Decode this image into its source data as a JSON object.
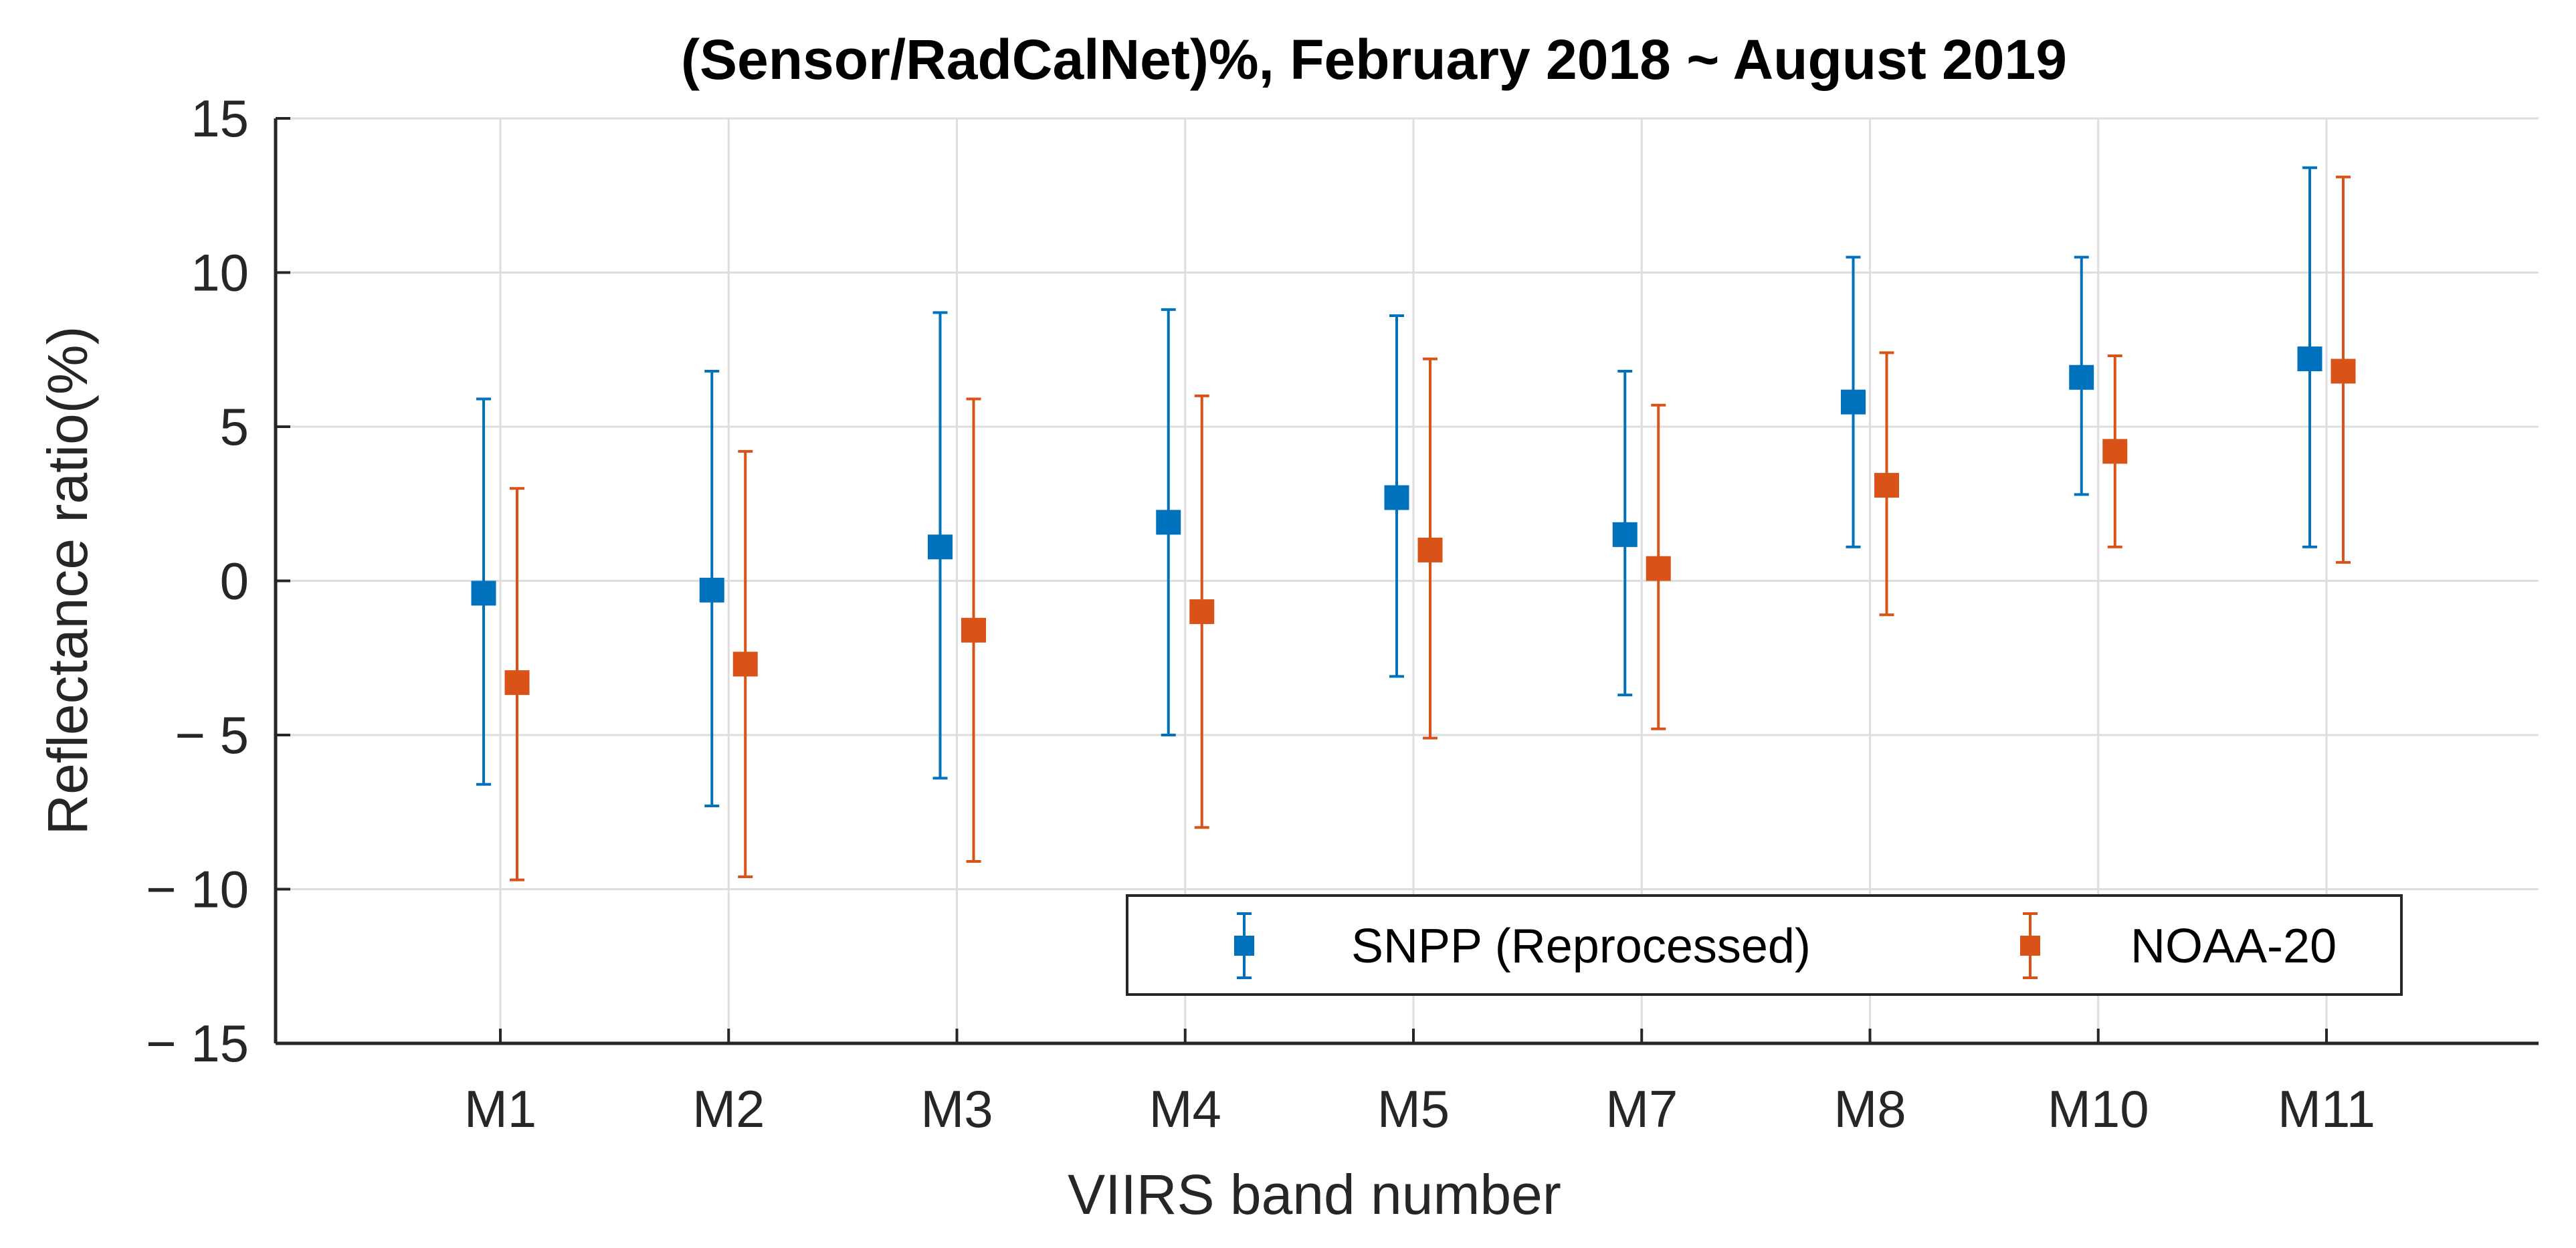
{
  "chart_data": {
    "type": "errorbar",
    "title": "(Sensor/RadCalNet)%, February 2018 ~ August 2019",
    "xlabel": "VIIRS band number",
    "ylabel": "Reflectance ratio(%)",
    "ylim": [
      -15,
      15
    ],
    "yticks": [
      15,
      10,
      5,
      0,
      -5,
      -10,
      -15
    ],
    "ytick_labels": [
      "15",
      "10",
      "5",
      "0",
      "− 5",
      "− 10",
      "− 15"
    ],
    "grid": true,
    "legend_position": "bottom-right",
    "categories": [
      "M1",
      "M2",
      "M3",
      "M4",
      "M5",
      "M7",
      "M8",
      "M10",
      "M11"
    ],
    "series": [
      {
        "name": "SNPP (Reprocessed)",
        "color": "#0072BD",
        "values": [
          -0.4,
          -0.3,
          1.1,
          1.9,
          2.7,
          1.5,
          5.8,
          6.6,
          7.2
        ],
        "lower": [
          -6.6,
          -7.3,
          -6.4,
          -5.0,
          -3.1,
          -3.7,
          1.1,
          2.8,
          1.1
        ],
        "upper": [
          5.9,
          6.8,
          8.7,
          8.8,
          8.6,
          6.8,
          10.5,
          10.5,
          13.4
        ]
      },
      {
        "name": "NOAA-20",
        "color": "#D95319",
        "values": [
          -3.3,
          -2.7,
          -1.6,
          -1.0,
          1.0,
          0.4,
          3.1,
          4.2,
          6.8
        ],
        "lower": [
          -9.7,
          -9.6,
          -9.1,
          -8.0,
          -5.1,
          -4.8,
          -1.1,
          1.1,
          0.6
        ],
        "upper": [
          3.0,
          4.2,
          5.9,
          6.0,
          7.2,
          5.7,
          7.4,
          7.3,
          13.1
        ]
      }
    ]
  }
}
